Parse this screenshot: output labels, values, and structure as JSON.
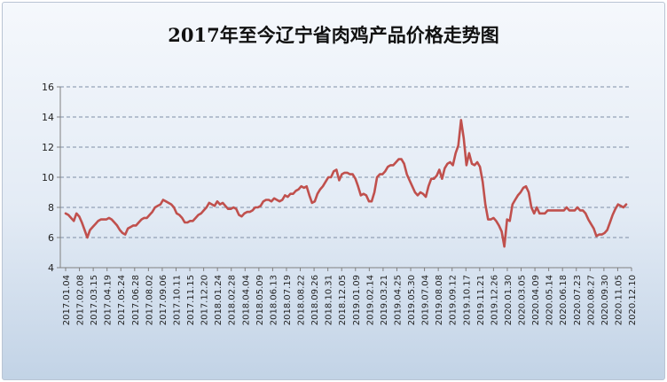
{
  "chart_data": {
    "type": "line",
    "title": "2017年至今辽宁省肉鸡产品价格走势图",
    "xlabel": "",
    "ylabel": "",
    "ylim": [
      4,
      16
    ],
    "yticks": [
      4,
      6,
      8,
      10,
      12,
      14,
      16
    ],
    "grid": true,
    "legend": "none",
    "colors": {
      "line": "#c0504d",
      "grid": "#7f8fa6",
      "axis": "#808080",
      "text": "#222222"
    },
    "x_tick_labels": [
      "2017.01.04",
      "2017.02.08",
      "2017.03.15",
      "2017.04.19",
      "2017.05.24",
      "2017.06.28",
      "2017.08.02",
      "2017.09.06",
      "2017.10.11",
      "2017.11.15",
      "2017.12.20",
      "2018.01.24",
      "2018.02.28",
      "2018.04.04",
      "2018.05.09",
      "2018.06.13",
      "2018.07.19",
      "2018.08.22",
      "2018.09.26",
      "2018.10.31",
      "2018.12.05",
      "2019.01.09",
      "2019.02.14",
      "2019.03.21",
      "2019.04.25",
      "2019.05.30",
      "2019.07.04",
      "2019.08.08",
      "2019.09.12",
      "2019.10.17",
      "2019.11.21",
      "2019.12.26",
      "2020.01.30",
      "2020.03.05",
      "2020.04.09",
      "2020.05.14",
      "2020.06.18",
      "2020.07.23",
      "2020.08.27",
      "2020.09.30",
      "2020.11.05",
      "2020.12.10"
    ],
    "series": [
      {
        "values": [
          7.6,
          7.5,
          7.3,
          7.1,
          7.6,
          7.4,
          7.0,
          6.5,
          6.0,
          6.5,
          6.7,
          6.9,
          7.1,
          7.2,
          7.2,
          7.2,
          7.3,
          7.2,
          7.0,
          6.8,
          6.5,
          6.3,
          6.2,
          6.6,
          6.7,
          6.8,
          6.8,
          7.0,
          7.2,
          7.3,
          7.3,
          7.5,
          7.7,
          8.0,
          8.1,
          8.2,
          8.5,
          8.4,
          8.3,
          8.2,
          8.0,
          7.6,
          7.5,
          7.3,
          7.0,
          7.0,
          7.1,
          7.1,
          7.3,
          7.5,
          7.6,
          7.8,
          8.0,
          8.3,
          8.2,
          8.1,
          8.4,
          8.2,
          8.3,
          8.1,
          7.9,
          7.9,
          8.0,
          7.9,
          7.5,
          7.4,
          7.6,
          7.7,
          7.7,
          7.8,
          8.0,
          8.0,
          8.1,
          8.4,
          8.5,
          8.5,
          8.4,
          8.6,
          8.5,
          8.4,
          8.5,
          8.8,
          8.7,
          8.9,
          8.9,
          9.1,
          9.2,
          9.4,
          9.3,
          9.4,
          8.8,
          8.3,
          8.4,
          8.9,
          9.2,
          9.4,
          9.7,
          10.0,
          10.0,
          10.4,
          10.5,
          9.8,
          10.2,
          10.3,
          10.3,
          10.2,
          10.2,
          9.9,
          9.4,
          8.8,
          8.9,
          8.8,
          8.4,
          8.4,
          9.0,
          10.0,
          10.2,
          10.2,
          10.4,
          10.7,
          10.8,
          10.8,
          11.0,
          11.2,
          11.2,
          10.9,
          10.2,
          9.8,
          9.4,
          9.0,
          8.8,
          9.0,
          8.9,
          8.7,
          9.4,
          9.9,
          9.9,
          10.1,
          10.5,
          9.9,
          10.6,
          10.9,
          11.0,
          10.8,
          11.6,
          12.1,
          13.8,
          12.6,
          10.8,
          11.6,
          10.9,
          10.8,
          11.0,
          10.7,
          9.7,
          8.2,
          7.2,
          7.2,
          7.3,
          7.1,
          6.8,
          6.4,
          5.4,
          7.2,
          7.1,
          8.2,
          8.5,
          8.8,
          9.0,
          9.3,
          9.4,
          9.0,
          8.0,
          7.6,
          8.0,
          7.6,
          7.6,
          7.6,
          7.8,
          7.8,
          7.8,
          7.8,
          7.8,
          7.8,
          7.8,
          8.0,
          7.8,
          7.8,
          7.8,
          8.0,
          7.8,
          7.8,
          7.6,
          7.2,
          6.9,
          6.6,
          6.1,
          6.2,
          6.2,
          6.3,
          6.5,
          7.0,
          7.5,
          7.9,
          8.2,
          8.1,
          8.0,
          8.2
        ]
      }
    ]
  }
}
